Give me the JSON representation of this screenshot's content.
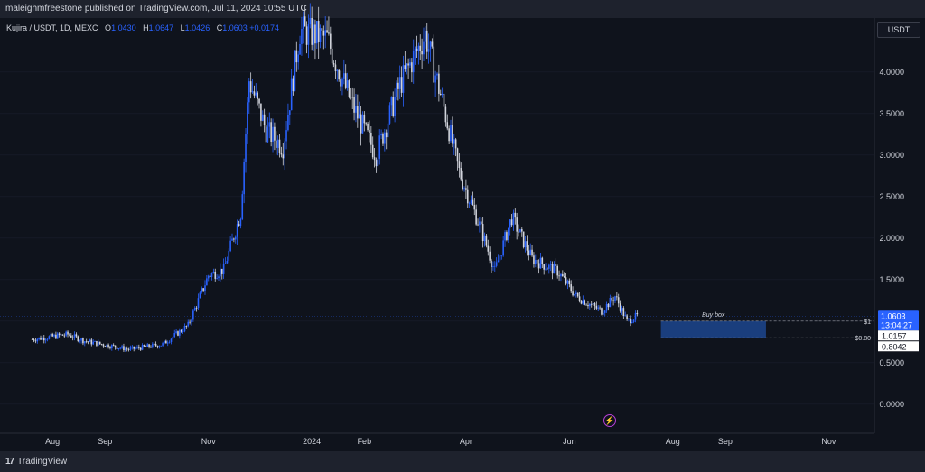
{
  "header": {
    "published": "maleighmfreestone published on TradingView.com, Jul 11, 2024 10:55 UTC"
  },
  "legend": {
    "symbol": "Kujira / USDT, 1D, MEXC",
    "o_label": "O",
    "o_value": "1.0430",
    "h_label": "H",
    "h_value": "1.0647",
    "l_label": "L",
    "l_value": "1.0426",
    "c_label": "C",
    "c_value": "1.0603",
    "change": "+0.0174"
  },
  "currency": "USDT",
  "footer": {
    "brand": "TradingView",
    "brand_mark": "17"
  },
  "colors": {
    "up": "#2962ff",
    "down": "#d1d4dc",
    "box": "#1f4e9e",
    "price_tag": "#2962ff",
    "background": "#0f131c"
  },
  "chart_data": {
    "type": "candlestick",
    "y_axis_ticks": [
      "4.0000",
      "3.5000",
      "3.0000",
      "2.5000",
      "2.0000",
      "1.5000",
      "1.0000",
      "0.5000",
      "0.0000"
    ],
    "y_axis_values": [
      4.0,
      3.5,
      3.0,
      2.5,
      2.0,
      1.5,
      1.0,
      0.5,
      0.0
    ],
    "x_axis_ticks": [
      "Aug",
      "Sep",
      "Nov",
      "2024",
      "Feb",
      "Apr",
      "Jun",
      "Aug",
      "Sep",
      "Nov"
    ],
    "x_axis_dates": [
      "2023-08-01",
      "2023-09-01",
      "2023-11-01",
      "2024-01-01",
      "2024-02-01",
      "2024-04-01",
      "2024-06-01",
      "2024-08-01",
      "2024-09-01",
      "2024-11-01"
    ],
    "ylim": [
      -0.35,
      4.65
    ],
    "series_path": [
      {
        "date": "2023-07-20",
        "close": 0.78
      },
      {
        "date": "2023-08-10",
        "close": 0.84
      },
      {
        "date": "2023-08-20",
        "close": 0.76
      },
      {
        "date": "2023-09-15",
        "close": 0.66
      },
      {
        "date": "2023-10-05",
        "close": 0.72
      },
      {
        "date": "2023-10-20",
        "close": 0.95
      },
      {
        "date": "2023-11-01",
        "close": 1.55
      },
      {
        "date": "2023-11-10",
        "close": 1.62
      },
      {
        "date": "2023-11-20",
        "close": 2.3
      },
      {
        "date": "2023-11-25",
        "close": 3.9
      },
      {
        "date": "2023-12-05",
        "close": 3.3
      },
      {
        "date": "2023-12-15",
        "close": 3.1
      },
      {
        "date": "2023-12-25",
        "close": 4.5
      },
      {
        "date": "2024-01-10",
        "close": 4.4
      },
      {
        "date": "2024-01-25",
        "close": 3.6
      },
      {
        "date": "2024-02-08",
        "close": 3.0
      },
      {
        "date": "2024-02-22",
        "close": 3.85
      },
      {
        "date": "2024-03-08",
        "close": 4.45
      },
      {
        "date": "2024-03-18",
        "close": 3.65
      },
      {
        "date": "2024-03-28",
        "close": 2.8
      },
      {
        "date": "2024-04-10",
        "close": 2.1
      },
      {
        "date": "2024-04-18",
        "close": 1.6
      },
      {
        "date": "2024-04-28",
        "close": 2.25
      },
      {
        "date": "2024-05-10",
        "close": 1.75
      },
      {
        "date": "2024-05-25",
        "close": 1.6
      },
      {
        "date": "2024-06-05",
        "close": 1.3
      },
      {
        "date": "2024-06-20",
        "close": 1.12
      },
      {
        "date": "2024-06-28",
        "close": 1.3
      },
      {
        "date": "2024-07-05",
        "close": 1.0
      },
      {
        "date": "2024-07-11",
        "close": 1.0603
      }
    ],
    "last_price": {
      "value": 1.0603,
      "label": "1.0603",
      "countdown": "13:04:27"
    },
    "buy_box": {
      "label": "Buy box",
      "top": 1.0,
      "bottom": 0.8,
      "top_label": "$1",
      "bottom_label": "$0.80",
      "top_tag": "1.0157",
      "bottom_tag": "0.8042",
      "start": "2024-07-25",
      "end": "2024-09-25"
    }
  }
}
